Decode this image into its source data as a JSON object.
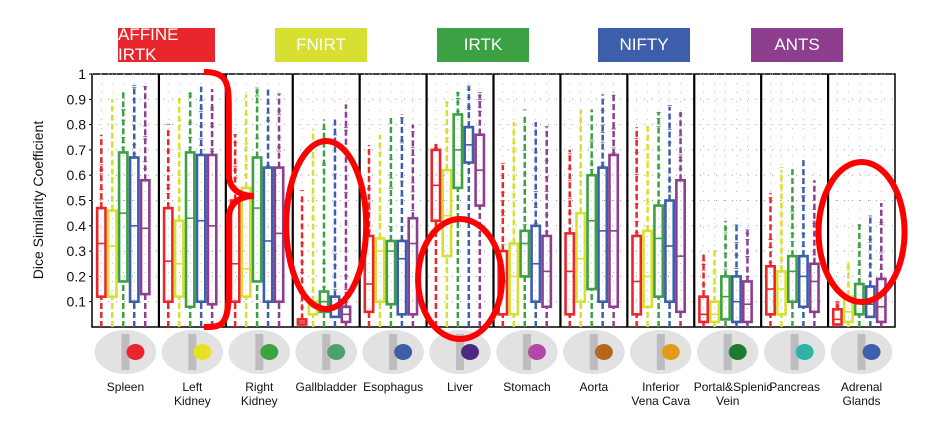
{
  "chart_data": {
    "type": "box",
    "title": "",
    "xlabel": "",
    "ylabel": "Dice Similarity Coefficient",
    "ylim": [
      0,
      1
    ],
    "yticks": [
      "0.1",
      "0.2",
      "0.3",
      "0.4",
      "0.5",
      "0.6",
      "0.7",
      "0.8",
      "0.9",
      "1"
    ],
    "grid": true,
    "legend_position": "top",
    "categories": [
      "Spleen",
      "Left Kidney",
      "Right Kidney",
      "Gallbladder",
      "Esophagus",
      "Liver",
      "Stomach",
      "Aorta",
      "Inferior Vena Cava",
      "Portal&Splenic Vein",
      "Pancreas",
      "Adrenal Glands"
    ],
    "category_labels": [
      "Spleen",
      "Left\nKidney",
      "Right\nKidney",
      "Gallbladder",
      "Esophagus",
      "Liver",
      "Stomach",
      "Aorta",
      "Inferior\nVena Cava",
      "Portal&Splenic\nVein",
      "Pancreas",
      "Adrenal\nGlands"
    ],
    "series": [
      {
        "name": "AFFINE IRTK",
        "color": "#e8262b",
        "whisker_low": [
          0,
          0,
          0,
          0,
          0,
          0,
          0,
          0,
          0,
          0,
          0,
          0
        ],
        "q1": [
          0.12,
          0.1,
          0.1,
          0.01,
          0.06,
          0.42,
          0.05,
          0.05,
          0.05,
          0.02,
          0.05,
          0.01
        ],
        "median": [
          0.33,
          0.26,
          0.25,
          0.02,
          0.17,
          0.56,
          0.18,
          0.22,
          0.18,
          0.05,
          0.15,
          0.03
        ],
        "q3": [
          0.47,
          0.47,
          0.5,
          0.03,
          0.36,
          0.7,
          0.3,
          0.37,
          0.36,
          0.12,
          0.24,
          0.07
        ],
        "whisker_high": [
          0.76,
          0.79,
          0.76,
          0.52,
          0.72,
          0.73,
          0.64,
          0.7,
          0.79,
          0.29,
          0.53,
          0.1
        ]
      },
      {
        "name": "FNIRT",
        "color": "#d7e030",
        "whisker_low": [
          0,
          0,
          0,
          0,
          0,
          0,
          0,
          0,
          0,
          0,
          0,
          0
        ],
        "q1": [
          0.12,
          0.12,
          0.12,
          0.05,
          0.1,
          0.28,
          0.05,
          0.1,
          0.08,
          0.02,
          0.05,
          0.02
        ],
        "median": [
          0.32,
          0.25,
          0.23,
          0.08,
          0.3,
          0.44,
          0.2,
          0.27,
          0.2,
          0.05,
          0.15,
          0.06
        ],
        "q3": [
          0.46,
          0.42,
          0.55,
          0.1,
          0.35,
          0.62,
          0.33,
          0.45,
          0.38,
          0.1,
          0.22,
          0.12
        ],
        "whisker_high": [
          0.9,
          0.91,
          0.92,
          0.78,
          0.76,
          0.9,
          0.81,
          0.86,
          0.8,
          0.3,
          0.62,
          0.25
        ]
      },
      {
        "name": "IRTK",
        "color": "#3ca143",
        "whisker_low": [
          0,
          0,
          0,
          0,
          0,
          0,
          0,
          0,
          0,
          0,
          0,
          0
        ],
        "q1": [
          0.18,
          0.08,
          0.18,
          0.06,
          0.09,
          0.55,
          0.2,
          0.15,
          0.12,
          0.03,
          0.1,
          0.05
        ],
        "median": [
          0.45,
          0.43,
          0.47,
          0.1,
          0.3,
          0.7,
          0.33,
          0.42,
          0.35,
          0.12,
          0.22,
          0.1
        ],
        "q3": [
          0.69,
          0.69,
          0.67,
          0.14,
          0.34,
          0.84,
          0.38,
          0.6,
          0.48,
          0.2,
          0.28,
          0.17
        ],
        "whisker_high": [
          0.93,
          0.93,
          0.94,
          0.82,
          0.83,
          0.93,
          0.84,
          0.86,
          0.85,
          0.42,
          0.63,
          0.41
        ]
      },
      {
        "name": "NIFTY",
        "color": "#3d5eaa",
        "whisker_low": [
          0,
          0,
          0,
          0,
          0,
          0,
          0,
          0,
          0,
          0,
          0,
          0
        ],
        "q1": [
          0.1,
          0.1,
          0.1,
          0.04,
          0.05,
          0.65,
          0.1,
          0.1,
          0.1,
          0.02,
          0.08,
          0.04
        ],
        "median": [
          0.4,
          0.42,
          0.34,
          0.08,
          0.27,
          0.72,
          0.25,
          0.38,
          0.32,
          0.1,
          0.2,
          0.09
        ],
        "q3": [
          0.67,
          0.68,
          0.63,
          0.12,
          0.34,
          0.79,
          0.4,
          0.63,
          0.5,
          0.2,
          0.28,
          0.16
        ],
        "whisker_high": [
          0.95,
          0.95,
          0.95,
          0.82,
          0.84,
          0.95,
          0.81,
          0.92,
          0.87,
          0.41,
          0.67,
          0.44
        ]
      },
      {
        "name": "ANTS",
        "color": "#8d3e8e",
        "whisker_low": [
          0,
          0,
          0,
          0,
          0,
          0,
          0,
          0,
          0,
          0,
          0,
          0
        ],
        "q1": [
          0.13,
          0.09,
          0.1,
          0.02,
          0.05,
          0.48,
          0.08,
          0.08,
          0.06,
          0.02,
          0.06,
          0.02
        ],
        "median": [
          0.39,
          0.4,
          0.37,
          0.05,
          0.33,
          0.62,
          0.22,
          0.38,
          0.28,
          0.09,
          0.18,
          0.08
        ],
        "q3": [
          0.58,
          0.68,
          0.63,
          0.08,
          0.43,
          0.76,
          0.36,
          0.68,
          0.58,
          0.18,
          0.25,
          0.19
        ],
        "whisker_high": [
          0.95,
          0.94,
          0.92,
          0.88,
          0.8,
          0.92,
          0.79,
          0.93,
          0.85,
          0.39,
          0.58,
          0.49
        ]
      }
    ],
    "annotations": [
      {
        "type": "brace",
        "spans": [
          "Spleen",
          "Left Kidney"
        ],
        "color": "#ff0000"
      },
      {
        "type": "ellipse",
        "around": "Gallbladder",
        "color": "#ff0000"
      },
      {
        "type": "ellipse",
        "around": "Liver",
        "color": "#ff0000"
      },
      {
        "type": "ellipse",
        "around": "Adrenal Glands",
        "color": "#ff0000"
      }
    ],
    "thumbnail_colors": [
      "#e8262b",
      "#e7e125",
      "#3ca143",
      "#49a36a",
      "#3d5eaa",
      "#4a2a7e",
      "#b04aa6",
      "#b5651d",
      "#e69a1a",
      "#1e7a2e",
      "#2fb3a6",
      "#3d5eaa"
    ]
  }
}
